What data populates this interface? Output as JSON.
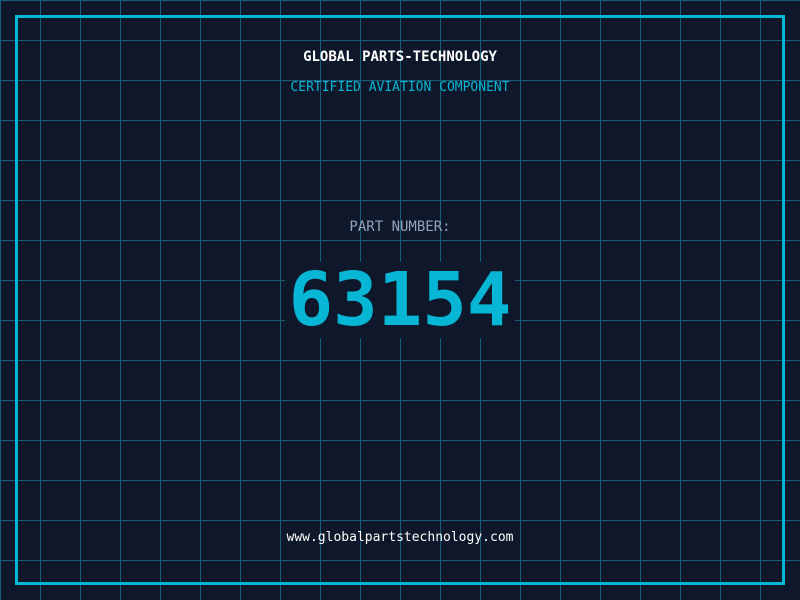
{
  "header": {
    "title": "GLOBAL PARTS-TECHNOLOGY",
    "subtitle": "CERTIFIED AVIATION COMPONENT"
  },
  "part": {
    "label": "PART NUMBER:",
    "number": "63154"
  },
  "footer": {
    "url": "www.globalpartstechnology.com"
  },
  "colors": {
    "background": "#0f172a",
    "accent": "#06b6d4",
    "grid": "#155e75",
    "label": "#94a3b8"
  }
}
